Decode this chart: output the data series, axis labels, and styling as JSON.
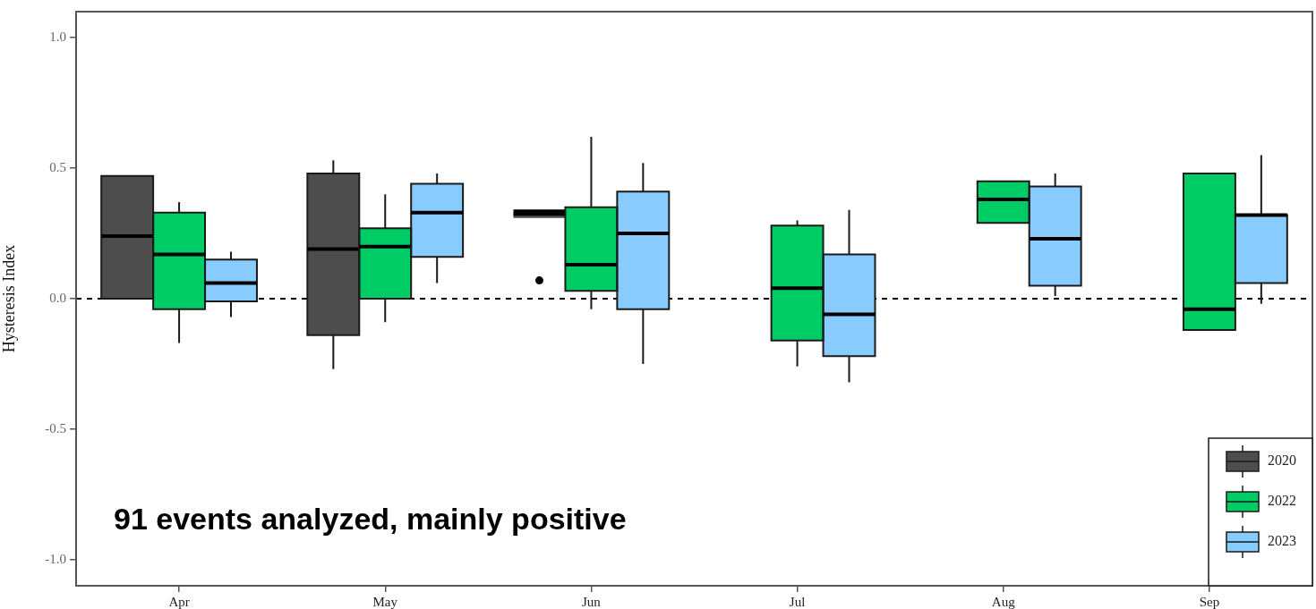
{
  "chart_data": {
    "type": "box",
    "ylabel": "Hysteresis Index",
    "categories": [
      "Apr",
      "May",
      "Jun",
      "Jul",
      "Aug",
      "Sep"
    ],
    "ylim": [
      -1.1,
      1.1
    ],
    "yticks": [
      {
        "value": -1,
        "label": "-1.0"
      },
      {
        "value": -0.5,
        "label": "-0.5"
      },
      {
        "value": 0,
        "label": "0.0"
      },
      {
        "value": 0.5,
        "label": "0.5"
      },
      {
        "value": 1,
        "label": "1.0"
      }
    ],
    "grid": false,
    "legend": "bottom right",
    "ref_lines": [
      {
        "axis": "y",
        "value": 0,
        "color": "#000000",
        "line_style": "dashed"
      }
    ],
    "annotations": [
      "91 events analyzed, mainly positive"
    ],
    "series": [
      {
        "name": "2020",
        "color": "#4d4d4d",
        "boxes": [
          {
            "low": 0.0,
            "q1": 0.0,
            "median": 0.24,
            "q3": 0.47,
            "high": 0.47
          },
          {
            "low": -0.27,
            "q1": -0.14,
            "median": 0.19,
            "q3": 0.48,
            "high": 0.53
          },
          {
            "low": 0.33,
            "q1": 0.33,
            "median": 0.33,
            "q3": 0.33,
            "high": 0.33,
            "outliers": [
              0.07
            ]
          },
          null,
          null,
          null
        ]
      },
      {
        "name": "2022",
        "color": "#00cc66",
        "boxes": [
          {
            "low": -0.17,
            "q1": -0.04,
            "median": 0.17,
            "q3": 0.33,
            "high": 0.37
          },
          {
            "low": -0.09,
            "q1": 0.0,
            "median": 0.2,
            "q3": 0.27,
            "high": 0.4
          },
          {
            "low": -0.04,
            "q1": 0.03,
            "median": 0.13,
            "q3": 0.35,
            "high": 0.62
          },
          {
            "low": -0.26,
            "q1": -0.16,
            "median": 0.04,
            "q3": 0.28,
            "high": 0.3
          },
          {
            "low": 0.29,
            "q1": 0.29,
            "median": 0.38,
            "q3": 0.45,
            "high": 0.45
          },
          {
            "low": -0.12,
            "q1": -0.12,
            "median": -0.04,
            "q3": 0.48,
            "high": 0.48
          }
        ]
      },
      {
        "name": "2023",
        "color": "#88ccff",
        "boxes": [
          {
            "low": -0.07,
            "q1": -0.01,
            "median": 0.06,
            "q3": 0.15,
            "high": 0.18
          },
          {
            "low": 0.06,
            "q1": 0.16,
            "median": 0.33,
            "q3": 0.44,
            "high": 0.48
          },
          {
            "low": -0.25,
            "q1": -0.04,
            "median": 0.25,
            "q3": 0.41,
            "high": 0.52
          },
          {
            "low": -0.32,
            "q1": -0.22,
            "median": -0.06,
            "q3": 0.17,
            "high": 0.34
          },
          {
            "low": 0.01,
            "q1": 0.05,
            "median": 0.23,
            "q3": 0.43,
            "high": 0.48
          },
          {
            "low": -0.02,
            "q1": 0.06,
            "median": 0.32,
            "q3": 0.32,
            "high": 0.55
          }
        ]
      }
    ]
  }
}
